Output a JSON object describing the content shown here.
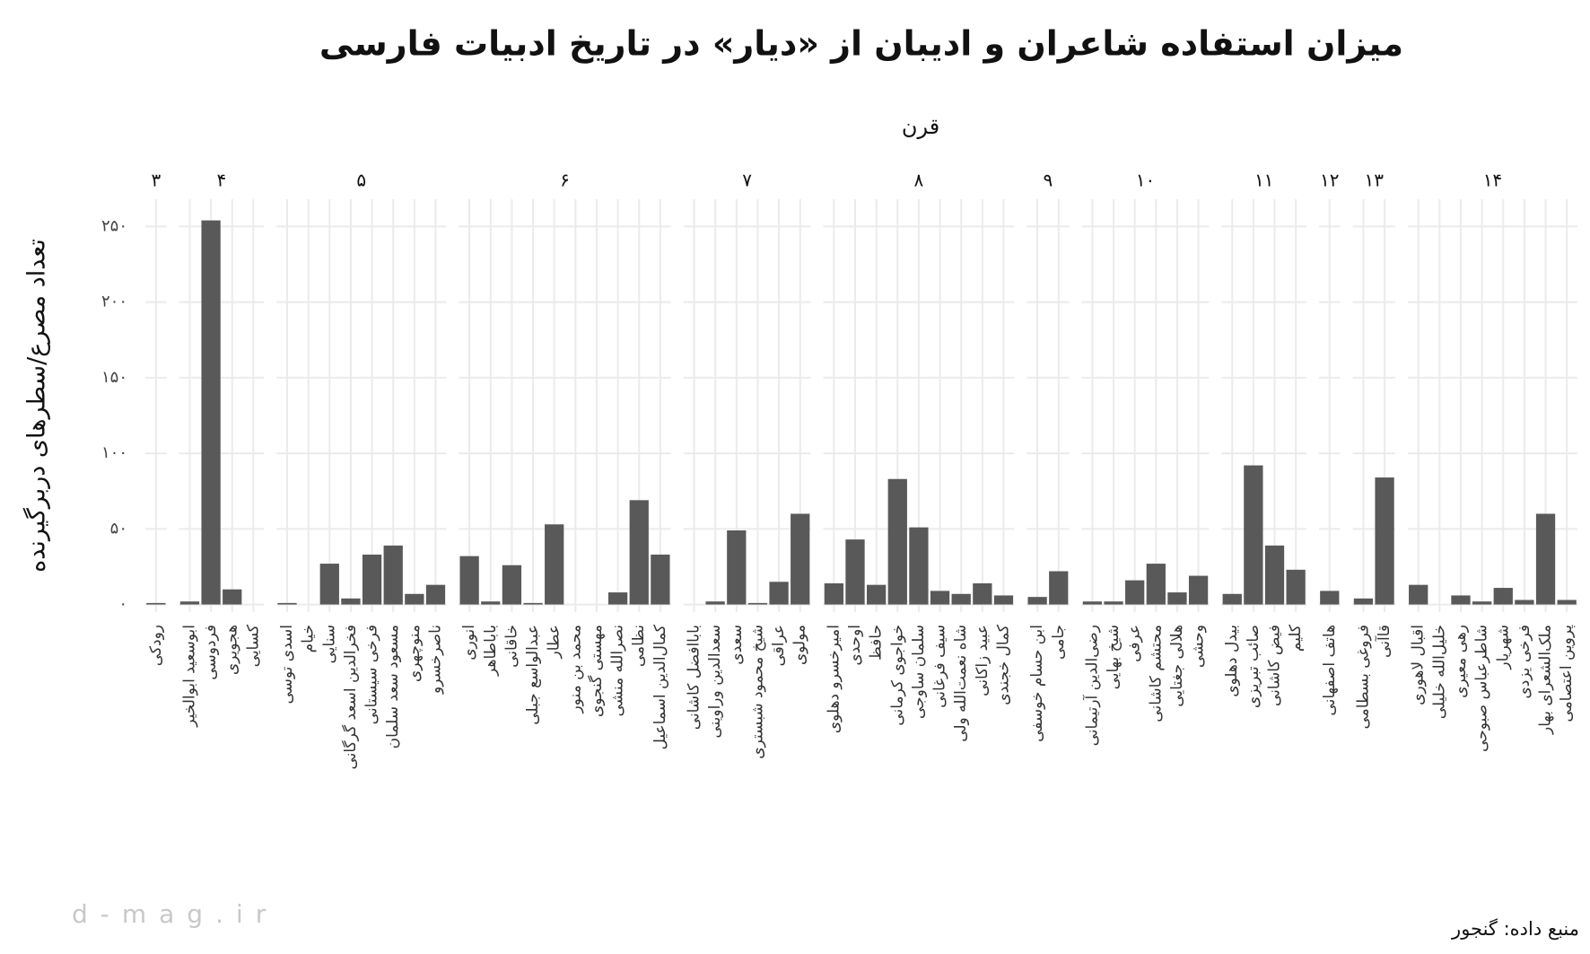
{
  "chart_data": {
    "type": "bar",
    "title": "میزان استفاده شاعران و ادیبان از «دیار» در تاریخ ادبیات فارسی",
    "facet_title": "قرن",
    "y_label": "تعداد مصرع/سطرهای دربرگیرنده",
    "caption": "منبع داده: گنجور",
    "watermark": "d-mag.ir",
    "color": "#595959",
    "grid": true,
    "ylim": [
      -5,
      268
    ],
    "yticks": [
      {
        "value": 0,
        "label": "۰"
      },
      {
        "value": 50,
        "label": "۵۰"
      },
      {
        "value": 100,
        "label": "۱۰۰"
      },
      {
        "value": 150,
        "label": "۱۵۰"
      },
      {
        "value": 200,
        "label": "۲۰۰"
      },
      {
        "value": 250,
        "label": "۲۵۰"
      }
    ],
    "facets": [
      {
        "label": "۳",
        "categories": [
          "رودکی"
        ],
        "values": [
          1
        ]
      },
      {
        "label": "۴",
        "categories": [
          "ابوسعید ابوالخیر",
          "فردوسی",
          "هجویری",
          "کسایی"
        ],
        "values": [
          2,
          254,
          10,
          0
        ]
      },
      {
        "label": "۵",
        "categories": [
          "اسدی توسی",
          "خیام",
          "سنایی",
          "فخرالدین اسعد گرگانی",
          "فرخی سیستانی",
          "مسعود سعد سلمان",
          "منوچهری",
          "ناصرخسرو"
        ],
        "values": [
          1,
          0,
          27,
          4,
          33,
          39,
          7,
          13
        ]
      },
      {
        "label": "۶",
        "categories": [
          "انوری",
          "باباطاهر",
          "خاقانی",
          "عبدالواسع جبلی",
          "عطار",
          "محمد بن منور",
          "مهستی گنجوی",
          "نصرالله منشی",
          "نظامی",
          "کمال‌الدین اسماعیل"
        ],
        "values": [
          32,
          2,
          26,
          1,
          53,
          0,
          0,
          8,
          69,
          33
        ]
      },
      {
        "label": "۷",
        "categories": [
          "باباافضل کاشانی",
          "سعدالدین وراوینی",
          "سعدی",
          "شیخ محمود شبستری",
          "عراقی",
          "مولوی"
        ],
        "values": [
          0,
          2,
          49,
          1,
          15,
          60
        ]
      },
      {
        "label": "۸",
        "categories": [
          "امیرخسرو دهلوی",
          "اوحدی",
          "حافظ",
          "خواجوی کرمانی",
          "سلمان ساوجی",
          "سیف فرغانی",
          "شاه نعمت‌الله ولی",
          "عبید زاکانی",
          "کمال خجندی"
        ],
        "values": [
          14,
          43,
          13,
          83,
          51,
          9,
          7,
          14,
          6
        ]
      },
      {
        "label": "۹",
        "categories": [
          "ابن حسام خوسفی",
          "جامی"
        ],
        "values": [
          5,
          22
        ]
      },
      {
        "label": "۱۰",
        "categories": [
          "رضی‌الدین آرتیمانی",
          "شیخ بهایی",
          "عرفی",
          "محتشم کاشانی",
          "هلالی جغتایی",
          "وحشی"
        ],
        "values": [
          2,
          2,
          16,
          27,
          8,
          19
        ]
      },
      {
        "label": "۱۱",
        "categories": [
          "بیدل دهلوی",
          "صائب تبریزی",
          "فیض کاشانی",
          "کلیم"
        ],
        "values": [
          7,
          92,
          39,
          23
        ]
      },
      {
        "label": "۱۲",
        "categories": [
          "هاتف اصفهانی"
        ],
        "values": [
          9
        ]
      },
      {
        "label": "۱۳",
        "categories": [
          "فروغی بسطامی",
          "قاآنی"
        ],
        "values": [
          4,
          84
        ]
      },
      {
        "label": "۱۴",
        "categories": [
          "اقبال لاهوری",
          "خلیل‌الله خلیلی",
          "رهی معیری",
          "شاطرعباس صبوحی",
          "شهریار",
          "فرخی یزدی",
          "ملک‌الشعرای بهار",
          "پروین اعتصامی"
        ],
        "values": [
          13,
          0,
          6,
          2,
          11,
          3,
          60,
          3
        ]
      }
    ]
  }
}
